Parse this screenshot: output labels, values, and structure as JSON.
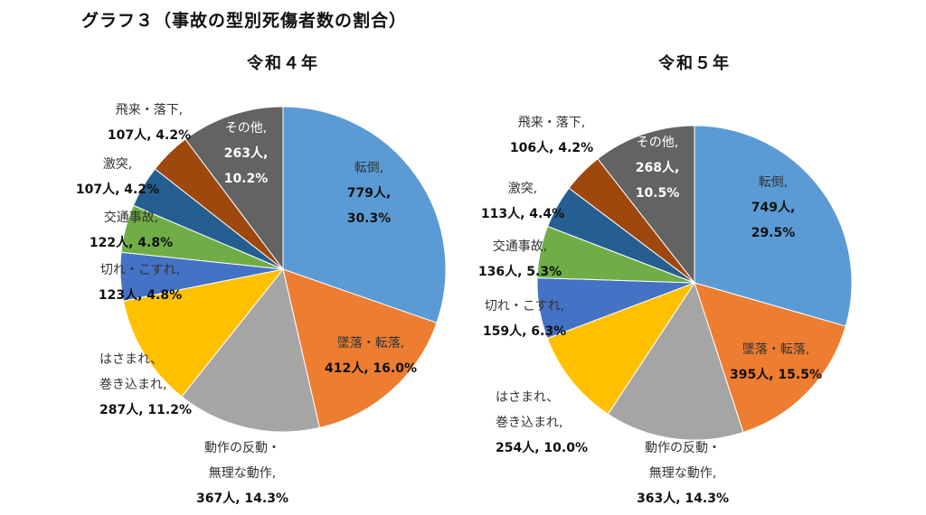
{
  "title": "グラフ３（事故の型別死傷者数の割合）",
  "chart_data": [
    {
      "type": "pie",
      "title": "令和４年",
      "categories": [
        "転倒",
        "墜落・転落",
        "動作の反動・無理な動作",
        "はさまれ、巻き込まれ",
        "切れ・こすれ",
        "交通事故",
        "激突",
        "飛来・落下",
        "その他"
      ],
      "values": [
        779,
        412,
        367,
        287,
        123,
        122,
        107,
        107,
        263
      ],
      "percents": [
        30.3,
        16.0,
        14.3,
        11.2,
        4.8,
        4.8,
        4.2,
        4.2,
        10.2
      ],
      "unit": "人",
      "colors": [
        "#5b9bd5",
        "#ed7d31",
        "#a5a5a5",
        "#ffc000",
        "#4472c4",
        "#70ad47",
        "#255e91",
        "#9e480e",
        "#636363"
      ],
      "labels": [
        [
          "転倒,",
          "779人,",
          "30.3%"
        ],
        [
          "墜落・転落,",
          "412人, 16.0%"
        ],
        [
          "動作の反動・",
          "無理な動作,",
          "367人, 14.3%"
        ],
        [
          "はさまれ、",
          "巻き込まれ,",
          "287人, 11.2%"
        ],
        [
          "切れ・こすれ,",
          "123人, 4.8%"
        ],
        [
          "交通事故,",
          "122人, 4.8%"
        ],
        [
          "激突,",
          "107人, 4.2%"
        ],
        [
          "飛来・落下,",
          "107人, 4.2%"
        ],
        [
          "その他,",
          "263人,",
          "10.2%"
        ]
      ]
    },
    {
      "type": "pie",
      "title": "令和５年",
      "categories": [
        "転倒",
        "墜落・転落",
        "動作の反動・無理な動作",
        "はさまれ、巻き込まれ",
        "切れ・こすれ",
        "交通事故",
        "激突",
        "飛来・落下",
        "その他"
      ],
      "values": [
        749,
        395,
        363,
        254,
        159,
        136,
        113,
        106,
        268
      ],
      "percents": [
        29.5,
        15.5,
        14.3,
        10.0,
        6.3,
        5.3,
        4.4,
        4.2,
        10.5
      ],
      "unit": "人",
      "colors": [
        "#5b9bd5",
        "#ed7d31",
        "#a5a5a5",
        "#ffc000",
        "#4472c4",
        "#70ad47",
        "#255e91",
        "#9e480e",
        "#636363"
      ],
      "labels": [
        [
          "転倒,",
          "749人,",
          "29.5%"
        ],
        [
          "墜落・転落,",
          "395人, 15.5%"
        ],
        [
          "動作の反動・",
          "無理な動作,",
          "363人, 14.3%"
        ],
        [
          "はさまれ、",
          "巻き込まれ,",
          "254人, 10.0%"
        ],
        [
          "切れ・こすれ,",
          "159人, 6.3%"
        ],
        [
          "交通事故,",
          "136人, 5.3%"
        ],
        [
          "激突,",
          "113人, 4.4%"
        ],
        [
          "飛来・落下,",
          "106人, 4.2%"
        ],
        [
          "その他,",
          "268人,",
          "10.5%"
        ]
      ]
    }
  ]
}
